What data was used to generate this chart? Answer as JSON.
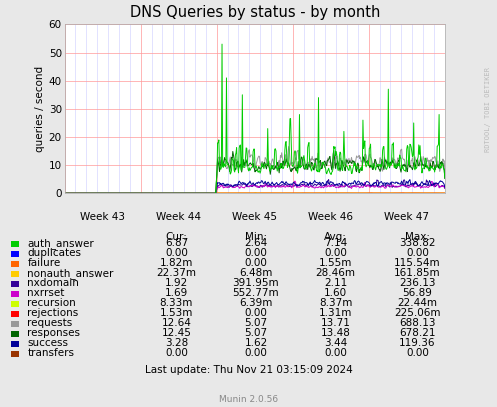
{
  "title": "DNS Queries by status - by month",
  "ylabel": "queries / second",
  "ylim": [
    0,
    60
  ],
  "yticks": [
    0,
    10,
    20,
    30,
    40,
    50,
    60
  ],
  "xtick_labels": [
    "Week 43",
    "Week 44",
    "Week 45",
    "Week 46",
    "Week 47"
  ],
  "background_color": "#e8e8e8",
  "plot_bg_color": "#ffffff",
  "grid_color_major": "#ff9999",
  "grid_color_minor": "#ccccff",
  "watermark": "RDTOOL/ TOBI OETIKER",
  "legend": [
    {
      "label": "auth_answer",
      "color": "#00cc00",
      "cur": "6.87",
      "min": "2.64",
      "avg": "7.14",
      "max": "338.82"
    },
    {
      "label": "duplicates",
      "color": "#0000ff",
      "cur": "0.00",
      "min": "0.00",
      "avg": "0.00",
      "max": "0.00"
    },
    {
      "label": "failure",
      "color": "#ff6600",
      "cur": "1.82m",
      "min": "0.00",
      "avg": "1.55m",
      "max": "115.54m"
    },
    {
      "label": "nonauth_answer",
      "color": "#ffcc00",
      "cur": "22.37m",
      "min": "6.48m",
      "avg": "28.46m",
      "max": "161.85m"
    },
    {
      "label": "nxdomain",
      "color": "#330099",
      "cur": "1.92",
      "min": "391.95m",
      "avg": "2.11",
      "max": "236.13"
    },
    {
      "label": "nxrrset",
      "color": "#cc00cc",
      "cur": "1.69",
      "min": "552.77m",
      "avg": "1.60",
      "max": "56.89"
    },
    {
      "label": "recursion",
      "color": "#ccff00",
      "cur": "8.33m",
      "min": "6.39m",
      "avg": "8.37m",
      "max": "22.44m"
    },
    {
      "label": "rejections",
      "color": "#ff0000",
      "cur": "1.53m",
      "min": "0.00",
      "avg": "1.31m",
      "max": "225.06m"
    },
    {
      "label": "requests",
      "color": "#999999",
      "cur": "12.64",
      "min": "5.07",
      "avg": "13.71",
      "max": "688.13"
    },
    {
      "label": "responses",
      "color": "#006600",
      "cur": "12.45",
      "min": "5.07",
      "avg": "13.48",
      "max": "678.21"
    },
    {
      "label": "success",
      "color": "#000099",
      "cur": "3.28",
      "min": "1.62",
      "avg": "3.44",
      "max": "119.36"
    },
    {
      "label": "transfers",
      "color": "#993300",
      "cur": "0.00",
      "min": "0.00",
      "avg": "0.00",
      "max": "0.00"
    }
  ],
  "last_update": "Last update: Thu Nov 21 03:15:09 2024",
  "munin_version": "Munin 2.0.56"
}
